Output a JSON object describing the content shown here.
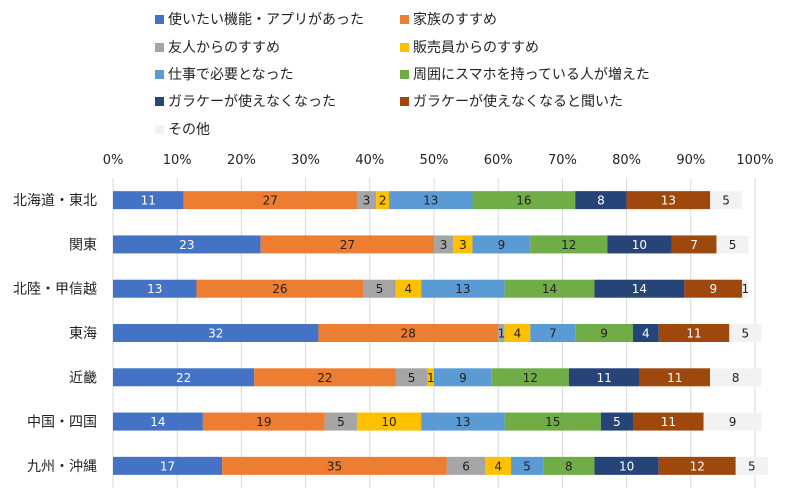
{
  "chart_data": {
    "type": "bar",
    "orientation": "horizontal",
    "stacked": "percent",
    "title": "",
    "xlabel": "",
    "ylabel": "",
    "xlim": [
      0,
      100
    ],
    "x_ticks": [
      "0%",
      "10%",
      "20%",
      "30%",
      "40%",
      "50%",
      "60%",
      "70%",
      "80%",
      "90%",
      "100%"
    ],
    "legend_position": "top",
    "grid": true,
    "categories": [
      "北海道・東北",
      "関東",
      "北陸・甲信越",
      "東海",
      "近畿",
      "中国・四国",
      "九州・沖縄"
    ],
    "series": [
      {
        "name": "使いたい機能・アプリがあった",
        "color": "#4472C4",
        "label_color": "#ffffff",
        "values": [
          11,
          23,
          13,
          32,
          22,
          14,
          17
        ]
      },
      {
        "name": "家族のすすめ",
        "color": "#ED7D31",
        "label_color": "#222222",
        "values": [
          27,
          27,
          26,
          28,
          22,
          19,
          35
        ]
      },
      {
        "name": "友人からのすすめ",
        "color": "#A5A5A5",
        "label_color": "#222222",
        "values": [
          3,
          3,
          5,
          1,
          5,
          5,
          6
        ]
      },
      {
        "name": "販売員からのすすめ",
        "color": "#FFC000",
        "label_color": "#222222",
        "values": [
          2,
          3,
          4,
          4,
          1,
          10,
          4
        ]
      },
      {
        "name": "仕事で必要となった",
        "color": "#5B9BD5",
        "label_color": "#222222",
        "values": [
          13,
          9,
          13,
          7,
          9,
          13,
          5
        ]
      },
      {
        "name": "周囲にスマホを持っている人が増えた",
        "color": "#70AD47",
        "label_color": "#222222",
        "values": [
          16,
          12,
          14,
          9,
          12,
          15,
          8
        ]
      },
      {
        "name": "ガラケーが使えなくなった",
        "color": "#264478",
        "label_color": "#ffffff",
        "values": [
          8,
          10,
          14,
          4,
          11,
          5,
          10
        ]
      },
      {
        "name": "ガラケーが使えなくなると聞いた",
        "color": "#9E480E",
        "label_color": "#ffffff",
        "values": [
          13,
          7,
          9,
          11,
          11,
          11,
          12
        ]
      },
      {
        "name": "その他",
        "color": "#F2F2F2",
        "label_color": "#222222",
        "values": [
          5,
          5,
          1,
          5,
          8,
          9,
          5
        ]
      }
    ]
  }
}
